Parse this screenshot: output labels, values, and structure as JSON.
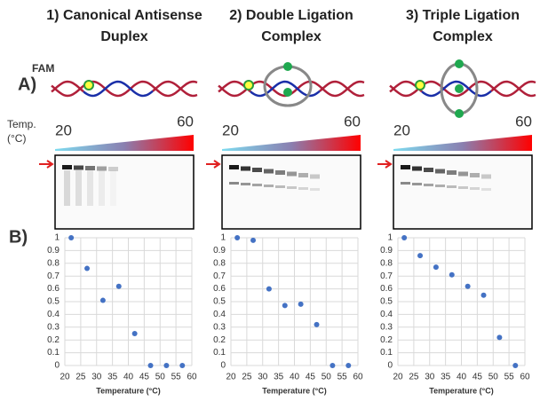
{
  "panel_a": "A)",
  "panel_b": "B)",
  "fam_label": "FAM",
  "temp_label": [
    "Temp.",
    "(°C)"
  ],
  "gradient": {
    "start": 20,
    "end": 60
  },
  "chart_data": [
    {
      "type": "scatter",
      "title": "1) Canonical Antisense Duplex",
      "xlabel": "Temperature (°C)",
      "x": [
        22,
        27,
        32,
        37,
        42,
        47,
        52,
        57
      ],
      "values": [
        1,
        0.76,
        0.51,
        0.62,
        0.25,
        0,
        0,
        0
      ],
      "color": "#4472c4",
      "xlim": [
        20,
        60
      ],
      "xticks": [
        20,
        25,
        30,
        35,
        40,
        45,
        50,
        55,
        60
      ],
      "ylim": [
        0,
        1
      ],
      "yticks": [
        0,
        0.1,
        0.2,
        0.3,
        0.4,
        0.5,
        0.6,
        0.7,
        0.8,
        0.9,
        1
      ],
      "grid": true
    },
    {
      "type": "scatter",
      "title": "2) Double Ligation Complex",
      "xlabel": "Temperature (°C)",
      "x": [
        22,
        27,
        32,
        37,
        42,
        47,
        52,
        57
      ],
      "values": [
        1,
        0.98,
        0.6,
        0.47,
        0.48,
        0.32,
        0,
        0
      ],
      "color": "#4472c4",
      "xlim": [
        20,
        60
      ],
      "xticks": [
        20,
        25,
        30,
        35,
        40,
        45,
        50,
        55,
        60
      ],
      "ylim": [
        0,
        1
      ],
      "yticks": [
        0,
        0.1,
        0.2,
        0.3,
        0.4,
        0.5,
        0.6,
        0.7,
        0.8,
        0.9,
        1
      ],
      "grid": true
    },
    {
      "type": "scatter",
      "title": "3) Triple Ligation Complex",
      "xlabel": "Temperature (°C)",
      "x": [
        22,
        27,
        32,
        37,
        42,
        47,
        52,
        57
      ],
      "values": [
        1,
        0.86,
        0.77,
        0.71,
        0.62,
        0.55,
        0.22,
        0
      ],
      "color": "#4472c4",
      "xlim": [
        20,
        60
      ],
      "xticks": [
        20,
        25,
        30,
        35,
        40,
        45,
        50,
        55,
        60
      ],
      "ylim": [
        0,
        1
      ],
      "yticks": [
        0,
        0.1,
        0.2,
        0.3,
        0.4,
        0.5,
        0.6,
        0.7,
        0.8,
        0.9,
        1
      ],
      "grid": true
    }
  ]
}
